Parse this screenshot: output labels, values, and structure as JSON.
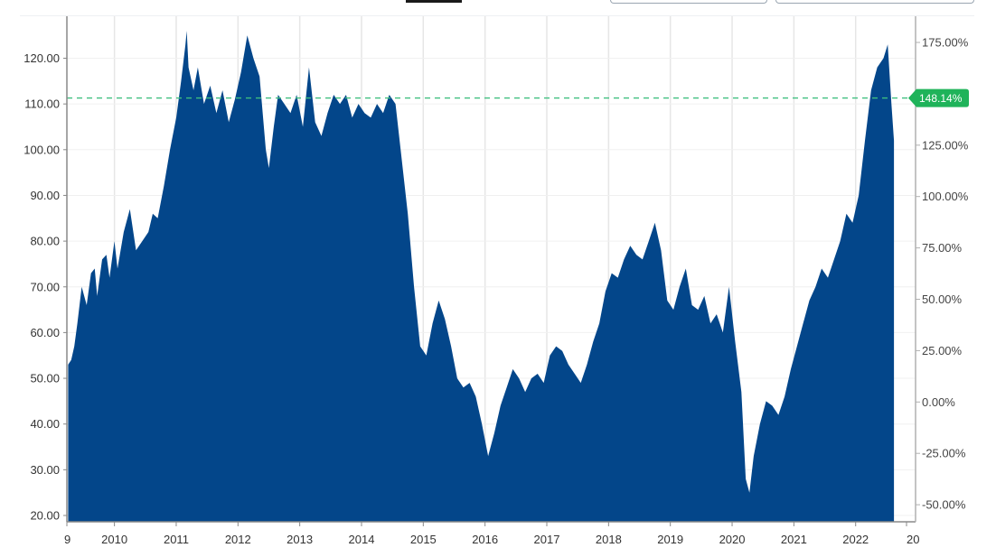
{
  "toolbar": {
    "active_tab": "",
    "buttons": [
      "",
      ""
    ]
  },
  "colors": {
    "area_fill": "#03468a",
    "reference_line": "#3fbf7f",
    "badge_bg": "#1fb35a",
    "grid": "#e6e6e6",
    "axis": "#888888"
  },
  "chart_data": {
    "type": "area",
    "title": "",
    "xlabel": "",
    "ylabel": "",
    "x_ticks": [
      "9",
      "2010",
      "2011",
      "2012",
      "2013",
      "2014",
      "2015",
      "2016",
      "2017",
      "2018",
      "2019",
      "2020",
      "2021",
      "2022",
      "20"
    ],
    "y_ticks": [
      20,
      30,
      40,
      50,
      60,
      70,
      80,
      90,
      100,
      110,
      120
    ],
    "y_tick_labels": [
      "20.00",
      "30.00",
      "40.00",
      "50.00",
      "60.00",
      "70.00",
      "80.00",
      "90.00",
      "100.00",
      "110.00",
      "120.00"
    ],
    "y_right_ticks": [
      "175.00%",
      "150.00%",
      "125.00%",
      "100.00%",
      "75.00%",
      "50.00%",
      "25.00%",
      "0.00%",
      "-25.00%",
      "-50.00%"
    ],
    "ylim": [
      19.3,
      129.1
    ],
    "xlim": [
      2009.23,
      2022.97
    ],
    "grid": true,
    "reference_line": {
      "value": 111.3,
      "label": "148.14%"
    },
    "series": [
      {
        "x": [
          2009.25,
          2009.3,
          2009.35,
          2009.4,
          2009.47,
          2009.55,
          2009.62,
          2009.68,
          2009.72,
          2009.8,
          2009.87,
          2009.92,
          2010.0,
          2010.05,
          2010.15,
          2010.25,
          2010.35,
          2010.45,
          2010.55,
          2010.62,
          2010.7,
          2010.8,
          2010.9,
          2011.0,
          2011.08,
          2011.15,
          2011.17,
          2011.2,
          2011.28,
          2011.35,
          2011.45,
          2011.55,
          2011.65,
          2011.75,
          2011.85,
          2011.95,
          2012.05,
          2012.15,
          2012.25,
          2012.35,
          2012.45,
          2012.5,
          2012.58,
          2012.65,
          2012.75,
          2012.85,
          2012.95,
          2013.05,
          2013.15,
          2013.25,
          2013.35,
          2013.45,
          2013.55,
          2013.65,
          2013.75,
          2013.85,
          2013.95,
          2014.05,
          2014.15,
          2014.25,
          2014.35,
          2014.45,
          2014.55,
          2014.65,
          2014.75,
          2014.85,
          2014.95,
          2015.05,
          2015.15,
          2015.25,
          2015.35,
          2015.45,
          2015.55,
          2015.65,
          2015.75,
          2015.85,
          2015.95,
          2016.05,
          2016.15,
          2016.25,
          2016.35,
          2016.45,
          2016.55,
          2016.65,
          2016.75,
          2016.85,
          2016.95,
          2017.05,
          2017.15,
          2017.25,
          2017.35,
          2017.45,
          2017.55,
          2017.65,
          2017.75,
          2017.85,
          2017.95,
          2018.05,
          2018.15,
          2018.25,
          2018.35,
          2018.45,
          2018.55,
          2018.65,
          2018.75,
          2018.85,
          2018.95,
          2019.05,
          2019.15,
          2019.25,
          2019.35,
          2019.45,
          2019.55,
          2019.65,
          2019.75,
          2019.85,
          2019.95,
          2020.05,
          2020.15,
          2020.22,
          2020.28,
          2020.35,
          2020.45,
          2020.55,
          2020.65,
          2020.75,
          2020.85,
          2020.95,
          2021.05,
          2021.15,
          2021.25,
          2021.35,
          2021.45,
          2021.55,
          2021.65,
          2021.75,
          2021.85,
          2021.95,
          2022.05,
          2022.15,
          2022.25,
          2022.35,
          2022.45,
          2022.52,
          2022.58,
          2022.62
        ],
        "values": [
          53.0,
          54.0,
          57.0,
          62.0,
          70.0,
          66.0,
          73.0,
          74.0,
          68.0,
          76.0,
          77.0,
          72.0,
          80.0,
          74.0,
          82.0,
          87.0,
          78.0,
          80.0,
          82.0,
          86.0,
          85.0,
          92.0,
          100.0,
          107.0,
          115.0,
          123.0,
          126.0,
          118.0,
          113.0,
          118.0,
          110.0,
          114.0,
          108.0,
          113.0,
          106.0,
          111.0,
          117.0,
          125.0,
          120.0,
          116.0,
          100.0,
          96.0,
          105.0,
          112.0,
          110.0,
          108.0,
          112.0,
          105.0,
          118.0,
          106.0,
          103.0,
          108.0,
          112.0,
          110.0,
          112.0,
          107.0,
          110.0,
          108.0,
          107.0,
          110.0,
          108.0,
          112.0,
          110.0,
          98.0,
          86.0,
          70.0,
          57.0,
          55.0,
          62.0,
          67.0,
          63.0,
          57.0,
          50.0,
          48.0,
          49.0,
          46.0,
          40.0,
          33.0,
          38.0,
          44.0,
          48.0,
          52.0,
          50.0,
          47.0,
          50.0,
          51.0,
          49.0,
          55.0,
          57.0,
          56.0,
          53.0,
          51.0,
          49.0,
          53.0,
          58.0,
          62.0,
          69.0,
          73.0,
          72.0,
          76.0,
          79.0,
          77.0,
          76.0,
          80.0,
          84.0,
          78.0,
          67.0,
          65.0,
          70.0,
          74.0,
          66.0,
          65.0,
          68.0,
          62.0,
          64.0,
          60.0,
          70.0,
          58.0,
          47.0,
          28.0,
          25.0,
          33.0,
          40.0,
          45.0,
          44.0,
          42.0,
          46.0,
          52.0,
          57.0,
          62.0,
          67.0,
          70.0,
          74.0,
          72.0,
          76.0,
          80.0,
          86.0,
          84.0,
          90.0,
          102.0,
          113.0,
          118.0,
          120.0,
          123.0,
          110.0,
          102.0
        ]
      }
    ]
  }
}
